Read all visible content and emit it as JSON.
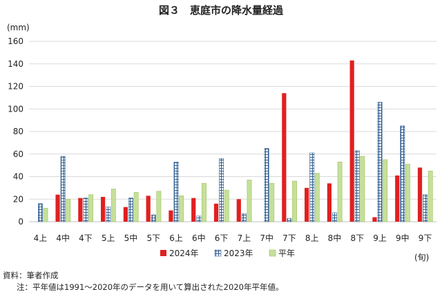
{
  "chart_data": {
    "type": "bar",
    "title": "図３　恵庭市の降水量経過",
    "ylabel": "(mm)",
    "xlabel": "(旬)",
    "ylim": [
      0,
      160
    ],
    "yticks": [
      0,
      20,
      40,
      60,
      80,
      100,
      120,
      140,
      160
    ],
    "grid": true,
    "legend_position": "bottom",
    "categories": [
      "4上",
      "4中",
      "4下",
      "5上",
      "5中",
      "5下",
      "6上",
      "6中",
      "6下",
      "7上",
      "7中",
      "7下",
      "8上",
      "8中",
      "8下",
      "9上",
      "9中",
      "9下"
    ],
    "series": [
      {
        "name": "2024年",
        "color": "#e02020",
        "pattern": "solid",
        "values": [
          0,
          24,
          21,
          22,
          13,
          23,
          10,
          21,
          16,
          20,
          0,
          114,
          30,
          34,
          143,
          4,
          41,
          48
        ]
      },
      {
        "name": "2023年",
        "color": "#2e5d8f",
        "pattern": "grid",
        "values": [
          16,
          58,
          21,
          13,
          21,
          6,
          53,
          5,
          56,
          7,
          65,
          3,
          61,
          8,
          63,
          106,
          85,
          24
        ]
      },
      {
        "name": "平年",
        "color": "#c6e09a",
        "pattern": "light",
        "values": [
          12,
          20,
          24,
          29,
          26,
          27,
          23,
          34,
          28,
          37,
          34,
          36,
          43,
          53,
          58,
          55,
          51,
          45
        ]
      }
    ]
  },
  "notes": {
    "source": "資料：筆者作成",
    "footnote": "注：平年値は1991～2020年のデータを用いて算出された2020年平年値。"
  }
}
